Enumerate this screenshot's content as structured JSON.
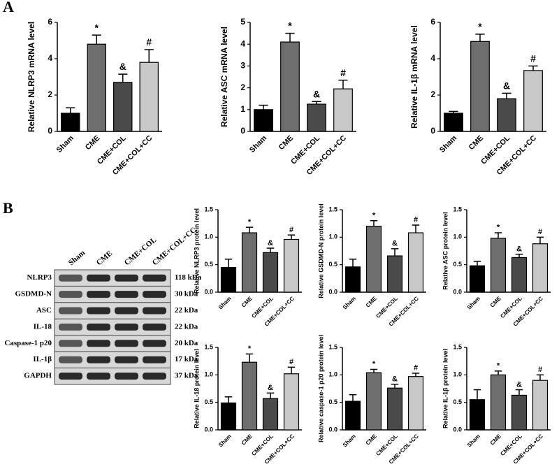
{
  "panels": [
    "A",
    "B"
  ],
  "blot": {
    "lanes": [
      "Sham",
      "CME",
      "CME+COL",
      "CME+COL+CC"
    ],
    "proteins": [
      "NLRP3",
      "GSDMD-N",
      "ASC",
      "IL-18",
      "Caspase-1 p20",
      "IL-1β",
      "GAPDH"
    ],
    "sizes": [
      "118 kDa",
      "30 kDa",
      "22 kDa",
      "22 kDa",
      "20 kDa",
      "17 kDa",
      "37 kDa"
    ]
  },
  "chart_data": [
    {
      "type": "bar",
      "ylabel": "Relative NLRP3 mRNA level",
      "categories": [
        "Sham",
        "CME",
        "CME+COL",
        "CME+COL+CC"
      ],
      "values": [
        1.0,
        4.8,
        2.7,
        3.8
      ],
      "errors": [
        0.3,
        0.5,
        0.45,
        0.7
      ],
      "annotations": [
        null,
        "*",
        "&",
        "#"
      ],
      "colors": [
        "#000000",
        "#6e6e6e",
        "#4a4a4a",
        "#c8c8c8"
      ],
      "ylim": [
        0,
        6
      ],
      "yticks": [
        0,
        2,
        4,
        6
      ]
    },
    {
      "type": "bar",
      "ylabel": "Relative ASC mRNA level",
      "categories": [
        "Sham",
        "CME",
        "CME+COL",
        "CME+COL+CC"
      ],
      "values": [
        1.0,
        4.1,
        1.25,
        1.95
      ],
      "errors": [
        0.2,
        0.4,
        0.12,
        0.4
      ],
      "annotations": [
        null,
        "*",
        "&",
        "#"
      ],
      "colors": [
        "#000000",
        "#6e6e6e",
        "#4a4a4a",
        "#c8c8c8"
      ],
      "ylim": [
        0,
        5
      ],
      "yticks": [
        0,
        1,
        2,
        3,
        4,
        5
      ]
    },
    {
      "type": "bar",
      "ylabel": "Relative IL-1β mRNA level",
      "categories": [
        "Sham",
        "CME",
        "CME+COL",
        "CME+COL+CC"
      ],
      "values": [
        1.0,
        4.95,
        1.8,
        3.35
      ],
      "errors": [
        0.1,
        0.4,
        0.3,
        0.25
      ],
      "annotations": [
        null,
        "*",
        "&",
        "#"
      ],
      "colors": [
        "#000000",
        "#6e6e6e",
        "#4a4a4a",
        "#c8c8c8"
      ],
      "ylim": [
        0,
        6
      ],
      "yticks": [
        0,
        2,
        4,
        6
      ]
    },
    {
      "type": "bar",
      "ylabel": "Relative NLRP3 protein level",
      "categories": [
        "Sham",
        "CME",
        "CME+COL",
        "CME+COL+CC"
      ],
      "values": [
        0.45,
        1.08,
        0.72,
        0.96
      ],
      "errors": [
        0.15,
        0.1,
        0.08,
        0.08
      ],
      "annotations": [
        null,
        "*",
        "&",
        "#"
      ],
      "colors": [
        "#000000",
        "#6e6e6e",
        "#4a4a4a",
        "#c8c8c8"
      ],
      "ylim": [
        0,
        1.5
      ],
      "yticks": [
        {
          "value": 0,
          "label": "0.0"
        },
        0.5,
        {
          "value": 1,
          "label": "1.0"
        },
        1.5
      ]
    },
    {
      "type": "bar",
      "ylabel": "Relative GSDMD-N protein level",
      "categories": [
        "Sham",
        "CME",
        "CME+COL",
        "CME+COL+CC"
      ],
      "values": [
        0.46,
        1.2,
        0.66,
        1.08
      ],
      "errors": [
        0.14,
        0.1,
        0.13,
        0.14
      ],
      "annotations": [
        null,
        "*",
        "&",
        "#"
      ],
      "colors": [
        "#000000",
        "#6e6e6e",
        "#4a4a4a",
        "#c8c8c8"
      ],
      "ylim": [
        0,
        1.5
      ],
      "yticks": [
        {
          "value": 0,
          "label": "0.0"
        },
        0.5,
        {
          "value": 1,
          "label": "1.0"
        },
        1.5
      ]
    },
    {
      "type": "bar",
      "ylabel": "Relative ASC protein level",
      "categories": [
        "Sham",
        "CME",
        "CME+COL",
        "CME+COL+CC"
      ],
      "values": [
        0.48,
        0.98,
        0.63,
        0.88
      ],
      "errors": [
        0.08,
        0.1,
        0.06,
        0.12
      ],
      "annotations": [
        null,
        "*",
        "&",
        "#"
      ],
      "colors": [
        "#000000",
        "#6e6e6e",
        "#4a4a4a",
        "#c8c8c8"
      ],
      "ylim": [
        0,
        1.5
      ],
      "yticks": [
        {
          "value": 0,
          "label": "0.0"
        },
        0.5,
        {
          "value": 1,
          "label": "1.0"
        },
        1.5
      ]
    },
    {
      "type": "bar",
      "ylabel": "Relative IL-18 protein level",
      "categories": [
        "Sham",
        "CME",
        "CME+COL",
        "CME+COL+CC"
      ],
      "values": [
        0.49,
        1.23,
        0.57,
        1.02
      ],
      "errors": [
        0.11,
        0.15,
        0.1,
        0.12
      ],
      "annotations": [
        null,
        "*",
        "&",
        "#"
      ],
      "colors": [
        "#000000",
        "#6e6e6e",
        "#4a4a4a",
        "#c8c8c8"
      ],
      "ylim": [
        0,
        1.5
      ],
      "yticks": [
        {
          "value": 0,
          "label": "0.0"
        },
        0.5,
        {
          "value": 1,
          "label": "1.0"
        },
        1.5
      ]
    },
    {
      "type": "bar",
      "ylabel": "Relative caspase-1 p20 protein level",
      "categories": [
        "Sham",
        "CME",
        "CME+COL",
        "CME+COL+CC"
      ],
      "values": [
        0.52,
        1.04,
        0.76,
        0.97
      ],
      "errors": [
        0.12,
        0.06,
        0.07,
        0.06
      ],
      "annotations": [
        null,
        "*",
        "&",
        "#"
      ],
      "colors": [
        "#000000",
        "#6e6e6e",
        "#4a4a4a",
        "#c8c8c8"
      ],
      "ylim": [
        0,
        1.5
      ],
      "yticks": [
        {
          "value": 0,
          "label": "0.0"
        },
        0.5,
        {
          "value": 1,
          "label": "1.0"
        },
        1.5
      ]
    },
    {
      "type": "bar",
      "ylabel": "Relative IL-1β protein level",
      "categories": [
        "Sham",
        "CME",
        "CME+COL",
        "CME+COL+CC"
      ],
      "values": [
        0.55,
        1.0,
        0.63,
        0.9
      ],
      "errors": [
        0.18,
        0.07,
        0.1,
        0.1
      ],
      "annotations": [
        null,
        "*",
        "&",
        "#"
      ],
      "colors": [
        "#000000",
        "#6e6e6e",
        "#4a4a4a",
        "#c8c8c8"
      ],
      "ylim": [
        0,
        1.5
      ],
      "yticks": [
        {
          "value": 0,
          "label": "0.0"
        },
        0.5,
        {
          "value": 1,
          "label": "1.0"
        },
        1.5
      ]
    }
  ]
}
